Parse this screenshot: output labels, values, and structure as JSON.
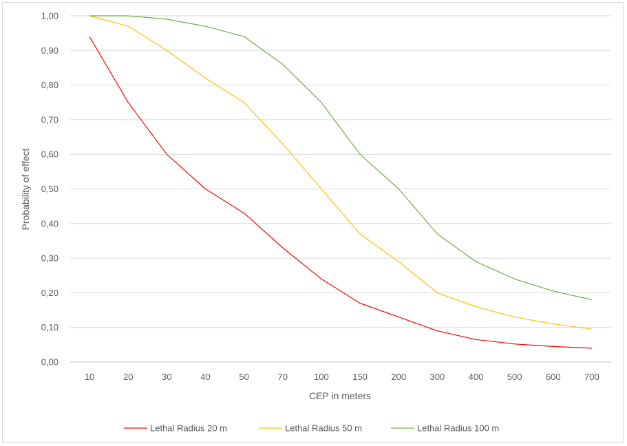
{
  "chart_data": {
    "type": "line",
    "title": "",
    "xlabel": "CEP in meters",
    "ylabel": "Probability of effect",
    "categories": [
      "10",
      "20",
      "30",
      "40",
      "50",
      "70",
      "100",
      "150",
      "200",
      "300",
      "400",
      "500",
      "600",
      "700"
    ],
    "ylim": [
      0,
      1
    ],
    "yticks": [
      "0,00",
      "0,10",
      "0,20",
      "0,30",
      "0,40",
      "0,50",
      "0,60",
      "0,70",
      "0,80",
      "0,90",
      "1,00"
    ],
    "grid": true,
    "legend_position": "bottom",
    "series": [
      {
        "name": "Lethal Radius 20 m",
        "color": "#ff0000",
        "values": [
          0.94,
          0.75,
          0.6,
          0.5,
          0.43,
          0.33,
          0.24,
          0.17,
          0.13,
          0.09,
          0.065,
          0.052,
          0.045,
          0.04
        ]
      },
      {
        "name": "Lethal Radius 50 m",
        "color": "#ffc000",
        "values": [
          1.0,
          0.97,
          0.9,
          0.82,
          0.75,
          0.63,
          0.5,
          0.37,
          0.29,
          0.2,
          0.16,
          0.13,
          0.11,
          0.095
        ]
      },
      {
        "name": "Lethal Radius 100 m",
        "color": "#70ad47",
        "values": [
          1.0,
          1.0,
          0.99,
          0.97,
          0.94,
          0.86,
          0.75,
          0.6,
          0.5,
          0.37,
          0.29,
          0.24,
          0.205,
          0.18
        ]
      }
    ]
  }
}
